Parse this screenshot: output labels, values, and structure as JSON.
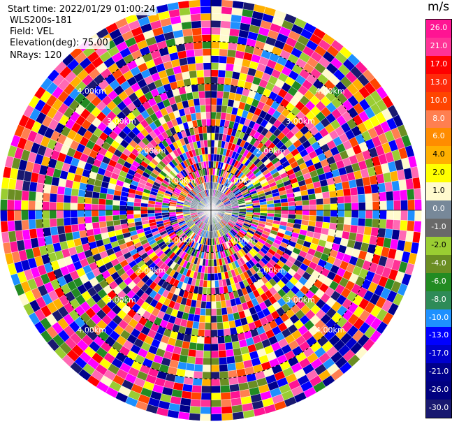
{
  "info": {
    "start_time": "Start time: 2022/01/29 01:00:24",
    "site": "WLS200s-181",
    "field": "Field: VEL",
    "elevation": "Elevation(deg): 75.00",
    "nrays": "NRays: 120"
  },
  "colorbar": {
    "unit": "m/s",
    "ticks": [
      "26.0",
      "21.0",
      "17.0",
      "13.0",
      "10.0",
      "8.0",
      "6.0",
      "4.0",
      "2.0",
      "1.0",
      "0.0",
      "-1.0",
      "-2.0",
      "-4.0",
      "-6.0",
      "-8.0",
      "-10.0",
      "-13.0",
      "-17.0",
      "-21.0",
      "-26.0",
      "-30.0"
    ],
    "colors": [
      "#ff1493",
      "#ff3296",
      "#ff0000",
      "#ff2a0a",
      "#ff4500",
      "#ff7f50",
      "#ff8c00",
      "#ffb000",
      "#ffff00",
      "#fffacd",
      "#778899",
      "#696969",
      "#9acd32",
      "#6b8e23",
      "#228b22",
      "#2e8b57",
      "#1e90ff",
      "#0000ff",
      "#0000cd",
      "#00008b",
      "#000080",
      "#191970"
    ]
  },
  "chart_data": {
    "type": "ppi_polar",
    "field": "VEL",
    "nrays": 120,
    "elevation_deg": 75.0,
    "range_rings_km": [
      "1.00km",
      "2.00km",
      "3.00km",
      "4.00km"
    ],
    "max_range_km": 5.0,
    "colormap_levels": [
      -30,
      -26,
      -21,
      -17,
      -13,
      -10,
      -8,
      -6,
      -4,
      -2,
      -1,
      0,
      1,
      2,
      4,
      6,
      8,
      10,
      13,
      17,
      21,
      26
    ],
    "colormap_colors": [
      "#191970",
      "#000080",
      "#00008b",
      "#0000cd",
      "#0000ff",
      "#1e90ff",
      "#2e8b57",
      "#228b22",
      "#6b8e23",
      "#9acd32",
      "#696969",
      "#778899",
      "#fffacd",
      "#ffff00",
      "#ffb000",
      "#ff8c00",
      "#ff7f50",
      "#ff4500",
      "#ff2a0a",
      "#ff0000",
      "#ff3296",
      "#ff1493"
    ],
    "gate_palette": [
      "#ff1493",
      "#ff3296",
      "#ff0000",
      "#ff4500",
      "#ff7f50",
      "#ffb000",
      "#ffff00",
      "#fffacd",
      "#9acd32",
      "#6b8e23",
      "#228b22",
      "#1e90ff",
      "#0000ff",
      "#0000cd",
      "#00008b",
      "#191970",
      "#ff69b4",
      "#ff00ff"
    ],
    "near_gate_color": "#778899",
    "grid": true
  }
}
